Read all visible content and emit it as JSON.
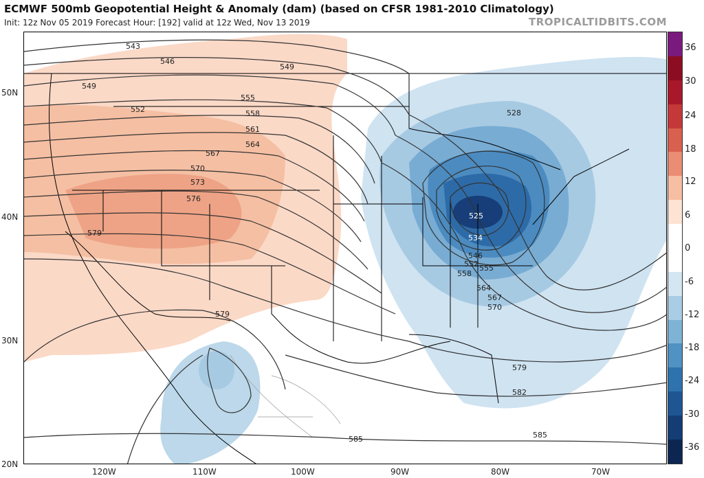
{
  "header": {
    "title": "ECMWF 500mb Geopotential Height & Anomaly (dam) (based on CFSR 1981-2010 Climatology)",
    "subtitle": "Init: 12z Nov 05 2019   Forecast Hour: [192]   valid at 12z Wed, Nov 13 2019",
    "credit": "TROPICALTIDBITS.COM"
  },
  "map": {
    "lat_labels": [
      "50N",
      "40N",
      "30N",
      "20N"
    ],
    "lon_labels": [
      "120W",
      "110W",
      "100W",
      "90W",
      "80W",
      "70W"
    ],
    "contour_labels": [
      "543",
      "546",
      "549",
      "549",
      "552",
      "555",
      "558",
      "561",
      "564",
      "567",
      "570",
      "573",
      "576",
      "579",
      "579",
      "525",
      "534",
      "546",
      "552",
      "555",
      "558",
      "564",
      "567",
      "570",
      "528",
      "579",
      "582",
      "585",
      "585"
    ]
  },
  "colorbar": {
    "labels": [
      "36",
      "30",
      "24",
      "18",
      "12",
      "6",
      "0",
      "-6",
      "-12",
      "-18",
      "-24",
      "-30",
      "-36"
    ],
    "colors": [
      "#7b1a7e",
      "#8c0d21",
      "#a8182a",
      "#c4383a",
      "#d8604e",
      "#e98d74",
      "#f6bea3",
      "#fde3d4",
      "#ffffff",
      "#ffffff",
      "#d4e6f2",
      "#a9cde4",
      "#7eb3d6",
      "#4f92c3",
      "#2e73ae",
      "#1d5693",
      "#133d74",
      "#0c2651"
    ]
  }
}
